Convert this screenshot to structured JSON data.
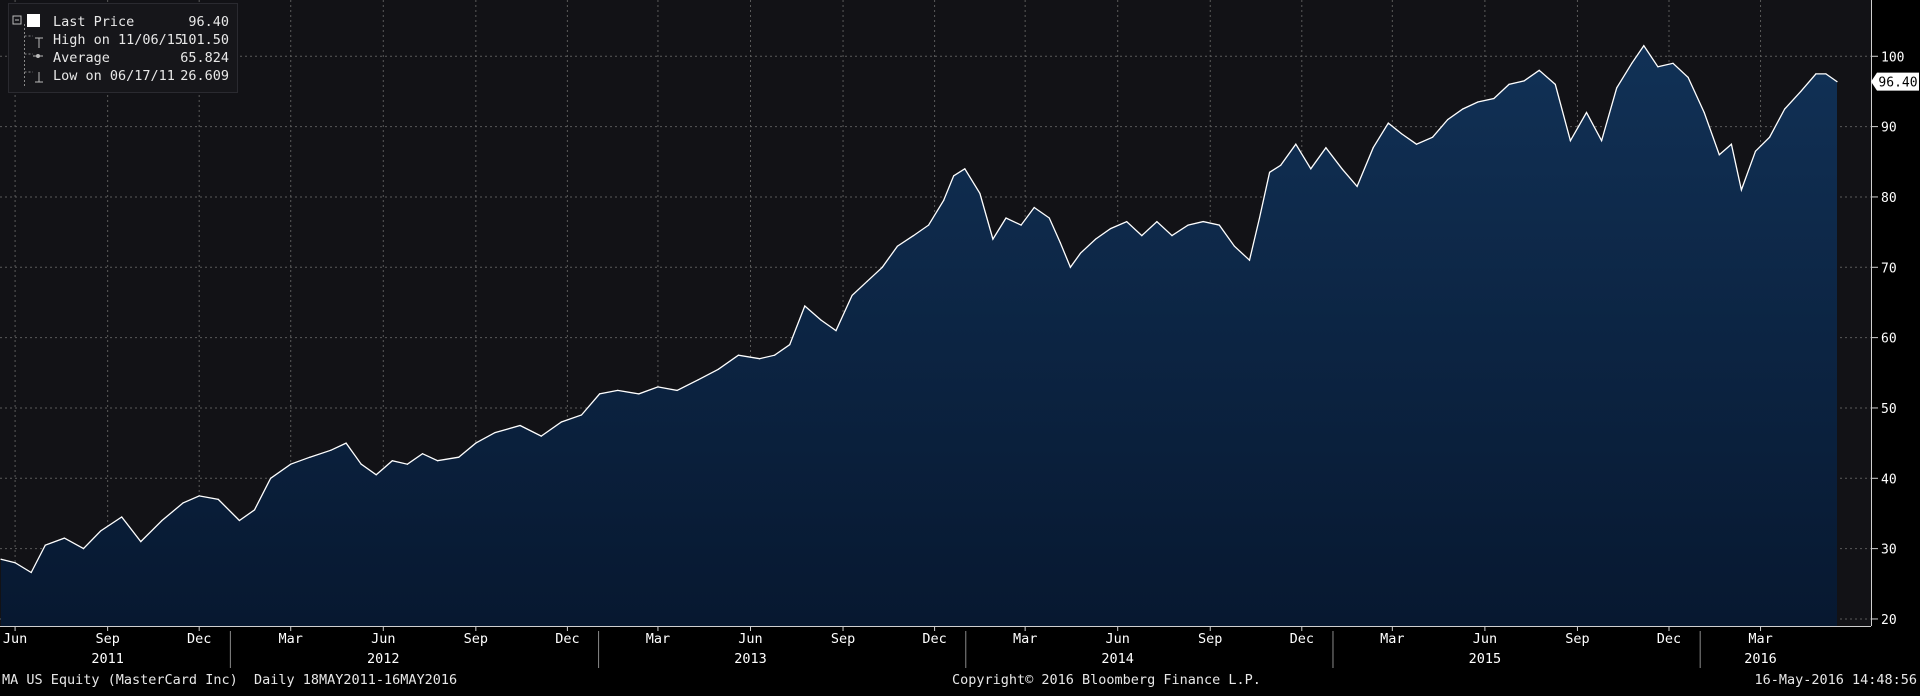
{
  "chart_data": {
    "type": "area",
    "ticker": "MA US Equity (MasterCard Inc)",
    "frequency": "Daily 18MAY2011-16MAY2016",
    "copyright": "Copyright© 2016 Bloomberg Finance L.P.",
    "timestamp": "16-May-2016 14:48:56",
    "ylim": [
      19,
      108
    ],
    "yticks": [
      20,
      30,
      40,
      50,
      60,
      70,
      80,
      90,
      100
    ],
    "xlim": [
      "2011-05-18",
      "2016-05-16"
    ],
    "grid": true,
    "colors": {
      "background": "#121216",
      "area_top": "#113156",
      "area_bottom": "#071830",
      "line": "#ffffff",
      "grid": "#5a5a5a"
    },
    "legend": {
      "placement": "top-left",
      "entries": [
        {
          "label": "Last Price",
          "value": "96.40"
        },
        {
          "label": "High on 11/06/15",
          "value": "101.50"
        },
        {
          "label": "Average",
          "value": "65.824"
        },
        {
          "label": "Low on 06/17/11",
          "value": "26.609"
        }
      ]
    },
    "last_price_label": "96.40",
    "month_ticks": [
      {
        "date": "2011-06-01",
        "label": "Jun"
      },
      {
        "date": "2011-09-01",
        "label": "Sep"
      },
      {
        "date": "2011-12-01",
        "label": "Dec"
      },
      {
        "date": "2012-03-01",
        "label": "Mar"
      },
      {
        "date": "2012-06-01",
        "label": "Jun"
      },
      {
        "date": "2012-09-01",
        "label": "Sep"
      },
      {
        "date": "2012-12-01",
        "label": "Dec"
      },
      {
        "date": "2013-03-01",
        "label": "Mar"
      },
      {
        "date": "2013-06-01",
        "label": "Jun"
      },
      {
        "date": "2013-09-01",
        "label": "Sep"
      },
      {
        "date": "2013-12-01",
        "label": "Dec"
      },
      {
        "date": "2014-03-01",
        "label": "Mar"
      },
      {
        "date": "2014-06-01",
        "label": "Jun"
      },
      {
        "date": "2014-09-01",
        "label": "Sep"
      },
      {
        "date": "2014-12-01",
        "label": "Dec"
      },
      {
        "date": "2015-03-01",
        "label": "Mar"
      },
      {
        "date": "2015-06-01",
        "label": "Jun"
      },
      {
        "date": "2015-09-01",
        "label": "Sep"
      },
      {
        "date": "2015-12-01",
        "label": "Dec"
      },
      {
        "date": "2016-03-01",
        "label": "Mar"
      }
    ],
    "year_ticks": [
      {
        "date": "2011-09-01",
        "label": "2011"
      },
      {
        "date": "2012-06-01",
        "label": "2012"
      },
      {
        "date": "2013-06-01",
        "label": "2013"
      },
      {
        "date": "2014-06-01",
        "label": "2014"
      },
      {
        "date": "2015-06-01",
        "label": "2015"
      },
      {
        "date": "2016-03-01",
        "label": "2016"
      }
    ],
    "year_separators": [
      "2012-01-01",
      "2013-01-01",
      "2014-01-01",
      "2015-01-01",
      "2016-01-01"
    ],
    "series": [
      {
        "values": [
          {
            "x": "2011-05-18",
            "y": 28.5
          },
          {
            "x": "2011-06-01",
            "y": 28.0
          },
          {
            "x": "2011-06-17",
            "y": 26.6
          },
          {
            "x": "2011-07-01",
            "y": 30.5
          },
          {
            "x": "2011-07-20",
            "y": 31.5
          },
          {
            "x": "2011-08-08",
            "y": 30.0
          },
          {
            "x": "2011-08-25",
            "y": 32.5
          },
          {
            "x": "2011-09-15",
            "y": 34.5
          },
          {
            "x": "2011-10-04",
            "y": 31.0
          },
          {
            "x": "2011-10-25",
            "y": 34.0
          },
          {
            "x": "2011-11-15",
            "y": 36.5
          },
          {
            "x": "2011-12-01",
            "y": 37.5
          },
          {
            "x": "2011-12-20",
            "y": 37.0
          },
          {
            "x": "2012-01-10",
            "y": 34.0
          },
          {
            "x": "2012-01-25",
            "y": 35.5
          },
          {
            "x": "2012-02-10",
            "y": 40.0
          },
          {
            "x": "2012-03-01",
            "y": 42.0
          },
          {
            "x": "2012-03-20",
            "y": 43.0
          },
          {
            "x": "2012-04-10",
            "y": 44.0
          },
          {
            "x": "2012-04-25",
            "y": 45.0
          },
          {
            "x": "2012-05-10",
            "y": 42.0
          },
          {
            "x": "2012-05-25",
            "y": 40.5
          },
          {
            "x": "2012-06-10",
            "y": 42.5
          },
          {
            "x": "2012-06-25",
            "y": 42.0
          },
          {
            "x": "2012-07-10",
            "y": 43.5
          },
          {
            "x": "2012-07-25",
            "y": 42.5
          },
          {
            "x": "2012-08-15",
            "y": 43.0
          },
          {
            "x": "2012-09-01",
            "y": 45.0
          },
          {
            "x": "2012-09-20",
            "y": 46.5
          },
          {
            "x": "2012-10-15",
            "y": 47.5
          },
          {
            "x": "2012-11-05",
            "y": 46.0
          },
          {
            "x": "2012-11-25",
            "y": 48.0
          },
          {
            "x": "2012-12-15",
            "y": 49.0
          },
          {
            "x": "2013-01-02",
            "y": 52.0
          },
          {
            "x": "2013-01-20",
            "y": 52.5
          },
          {
            "x": "2013-02-10",
            "y": 52.0
          },
          {
            "x": "2013-03-01",
            "y": 53.0
          },
          {
            "x": "2013-03-20",
            "y": 52.5
          },
          {
            "x": "2013-04-10",
            "y": 54.0
          },
          {
            "x": "2013-04-30",
            "y": 55.5
          },
          {
            "x": "2013-05-20",
            "y": 57.5
          },
          {
            "x": "2013-06-10",
            "y": 57.0
          },
          {
            "x": "2013-06-25",
            "y": 57.5
          },
          {
            "x": "2013-07-10",
            "y": 59.0
          },
          {
            "x": "2013-07-25",
            "y": 64.5
          },
          {
            "x": "2013-08-10",
            "y": 62.5
          },
          {
            "x": "2013-08-25",
            "y": 61.0
          },
          {
            "x": "2013-09-10",
            "y": 66.0
          },
          {
            "x": "2013-09-25",
            "y": 68.0
          },
          {
            "x": "2013-10-10",
            "y": 70.0
          },
          {
            "x": "2013-10-25",
            "y": 73.0
          },
          {
            "x": "2013-11-10",
            "y": 74.5
          },
          {
            "x": "2013-11-25",
            "y": 76.0
          },
          {
            "x": "2013-12-10",
            "y": 79.5
          },
          {
            "x": "2013-12-20",
            "y": 83.0
          },
          {
            "x": "2013-12-31",
            "y": 84.0
          },
          {
            "x": "2014-01-15",
            "y": 80.5
          },
          {
            "x": "2014-01-28",
            "y": 74.0
          },
          {
            "x": "2014-02-10",
            "y": 77.0
          },
          {
            "x": "2014-02-25",
            "y": 76.0
          },
          {
            "x": "2014-03-10",
            "y": 78.5
          },
          {
            "x": "2014-03-25",
            "y": 77.0
          },
          {
            "x": "2014-04-05",
            "y": 73.5
          },
          {
            "x": "2014-04-15",
            "y": 70.0
          },
          {
            "x": "2014-04-25",
            "y": 72.0
          },
          {
            "x": "2014-05-10",
            "y": 74.0
          },
          {
            "x": "2014-05-25",
            "y": 75.5
          },
          {
            "x": "2014-06-10",
            "y": 76.5
          },
          {
            "x": "2014-06-25",
            "y": 74.5
          },
          {
            "x": "2014-07-10",
            "y": 76.5
          },
          {
            "x": "2014-07-25",
            "y": 74.5
          },
          {
            "x": "2014-08-10",
            "y": 76.0
          },
          {
            "x": "2014-08-25",
            "y": 76.5
          },
          {
            "x": "2014-09-10",
            "y": 76.0
          },
          {
            "x": "2014-09-25",
            "y": 73.0
          },
          {
            "x": "2014-10-10",
            "y": 71.0
          },
          {
            "x": "2014-10-20",
            "y": 77.0
          },
          {
            "x": "2014-10-30",
            "y": 83.5
          },
          {
            "x": "2014-11-10",
            "y": 84.5
          },
          {
            "x": "2014-11-25",
            "y": 87.5
          },
          {
            "x": "2014-12-10",
            "y": 84.0
          },
          {
            "x": "2014-12-25",
            "y": 87.0
          },
          {
            "x": "2015-01-10",
            "y": 84.0
          },
          {
            "x": "2015-01-25",
            "y": 81.5
          },
          {
            "x": "2015-02-10",
            "y": 87.0
          },
          {
            "x": "2015-02-25",
            "y": 90.5
          },
          {
            "x": "2015-03-10",
            "y": 89.0
          },
          {
            "x": "2015-03-25",
            "y": 87.5
          },
          {
            "x": "2015-04-10",
            "y": 88.5
          },
          {
            "x": "2015-04-25",
            "y": 91.0
          },
          {
            "x": "2015-05-10",
            "y": 92.5
          },
          {
            "x": "2015-05-25",
            "y": 93.5
          },
          {
            "x": "2015-06-10",
            "y": 94.0
          },
          {
            "x": "2015-06-25",
            "y": 96.0
          },
          {
            "x": "2015-07-10",
            "y": 96.5
          },
          {
            "x": "2015-07-25",
            "y": 98.0
          },
          {
            "x": "2015-08-10",
            "y": 96.0
          },
          {
            "x": "2015-08-25",
            "y": 88.0
          },
          {
            "x": "2015-09-10",
            "y": 92.0
          },
          {
            "x": "2015-09-25",
            "y": 88.0
          },
          {
            "x": "2015-10-10",
            "y": 95.5
          },
          {
            "x": "2015-10-25",
            "y": 99.0
          },
          {
            "x": "2015-11-06",
            "y": 101.5
          },
          {
            "x": "2015-11-20",
            "y": 98.5
          },
          {
            "x": "2015-12-05",
            "y": 99.0
          },
          {
            "x": "2015-12-20",
            "y": 97.0
          },
          {
            "x": "2016-01-05",
            "y": 92.0
          },
          {
            "x": "2016-01-20",
            "y": 86.0
          },
          {
            "x": "2016-02-01",
            "y": 87.5
          },
          {
            "x": "2016-02-11",
            "y": 81.0
          },
          {
            "x": "2016-02-25",
            "y": 86.5
          },
          {
            "x": "2016-03-10",
            "y": 88.5
          },
          {
            "x": "2016-03-25",
            "y": 92.5
          },
          {
            "x": "2016-04-10",
            "y": 95.0
          },
          {
            "x": "2016-04-25",
            "y": 97.5
          },
          {
            "x": "2016-05-05",
            "y": 97.5
          },
          {
            "x": "2016-05-16",
            "y": 96.4
          }
        ]
      }
    ]
  }
}
